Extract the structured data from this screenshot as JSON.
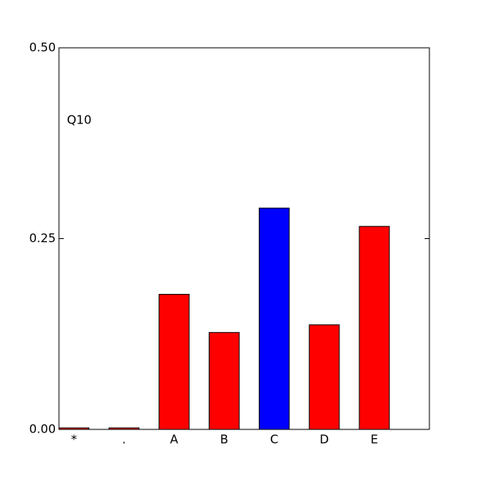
{
  "chart_data": {
    "type": "bar",
    "annotation": "Q10",
    "categories": [
      "*",
      ".",
      "A",
      "B",
      "C",
      "D",
      "E"
    ],
    "values": [
      0.002,
      0.002,
      0.177,
      0.127,
      0.29,
      0.137,
      0.266
    ],
    "colors": [
      "#ff0000",
      "#ff0000",
      "#ff0000",
      "#ff0000",
      "#0000ff",
      "#ff0000",
      "#ff0000"
    ],
    "ylim": [
      0,
      0.5
    ],
    "yticks": [
      {
        "value": 0,
        "label": "0.00"
      },
      {
        "value": 0.25,
        "label": "0.25"
      },
      {
        "value": 0.5,
        "label": "0.50"
      }
    ]
  }
}
